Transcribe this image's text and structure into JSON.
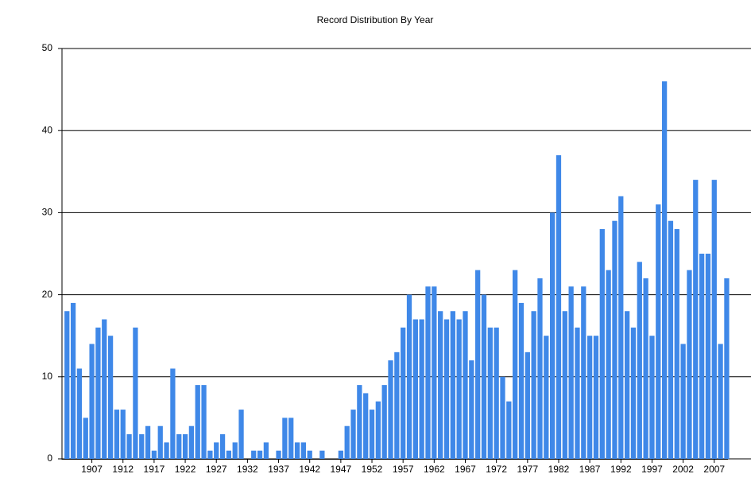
{
  "chart_data": {
    "type": "bar",
    "title": "Record Distribution By Year",
    "categories": [
      null,
      null,
      null,
      null,
      "1907",
      null,
      null,
      null,
      null,
      "1912",
      null,
      null,
      null,
      null,
      "1917",
      null,
      null,
      null,
      null,
      "1922",
      null,
      null,
      null,
      null,
      "1927",
      null,
      null,
      null,
      null,
      "1932",
      null,
      null,
      null,
      null,
      "1937",
      null,
      null,
      null,
      null,
      "1942",
      null,
      null,
      null,
      null,
      "1947",
      null,
      null,
      null,
      null,
      "1952",
      null,
      null,
      null,
      null,
      "1957",
      null,
      null,
      null,
      null,
      "1962",
      null,
      null,
      null,
      null,
      "1967",
      null,
      null,
      null,
      null,
      "1972",
      null,
      null,
      null,
      null,
      "1977",
      null,
      null,
      null,
      null,
      "1982",
      null,
      null,
      null,
      null,
      "1987",
      null,
      null,
      null,
      null,
      "1992",
      null,
      null,
      null,
      null,
      "1997",
      null,
      null,
      null,
      null,
      "2002",
      null,
      null,
      null,
      null,
      "2007",
      null,
      null
    ],
    "values": [
      18,
      19,
      11,
      5,
      14,
      16,
      17,
      15,
      6,
      6,
      3,
      16,
      3,
      4,
      1,
      4,
      2,
      11,
      3,
      3,
      4,
      9,
      9,
      1,
      2,
      3,
      1,
      2,
      6,
      0,
      1,
      1,
      2,
      0,
      1,
      5,
      5,
      2,
      2,
      1,
      0,
      1,
      0,
      0,
      1,
      4,
      6,
      9,
      8,
      6,
      7,
      9,
      12,
      13,
      16,
      20,
      17,
      17,
      21,
      21,
      18,
      17,
      18,
      17,
      18,
      12,
      23,
      20,
      16,
      16,
      10,
      7,
      23,
      19,
      13,
      18,
      22,
      15,
      30,
      37,
      18,
      21,
      16,
      21,
      15,
      15,
      28,
      23,
      29,
      32,
      18,
      16,
      24,
      22,
      15,
      31,
      46,
      29,
      28,
      14,
      23,
      34,
      25,
      25,
      34,
      14,
      22
    ],
    "color": "#3f88e8",
    "ylim": [
      0,
      50
    ],
    "yticks": [
      0,
      10,
      20,
      30,
      40,
      50
    ],
    "grid": true
  }
}
